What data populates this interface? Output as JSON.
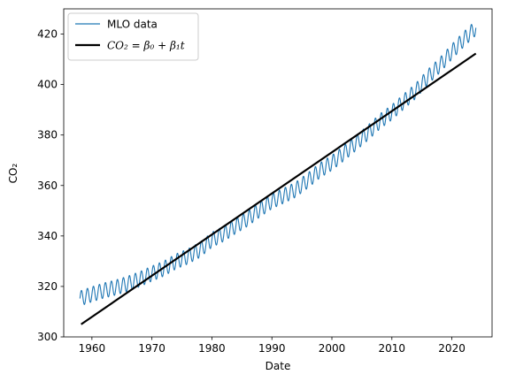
{
  "chart_data": {
    "type": "line",
    "title": "",
    "xlabel": "Date",
    "ylabel": "CO₂",
    "xlim": [
      1955.3,
      2026.7
    ],
    "ylim": [
      300,
      430
    ],
    "xticks": [
      1960,
      1970,
      1980,
      1990,
      2000,
      2010,
      2020
    ],
    "yticks": [
      300,
      320,
      340,
      360,
      380,
      400,
      420
    ],
    "xtick_labels": [
      "1960",
      "1970",
      "1980",
      "1990",
      "2000",
      "2010",
      "2020"
    ],
    "ytick_labels": [
      "300",
      "320",
      "340",
      "360",
      "380",
      "400",
      "420"
    ],
    "legend_position": "upper-left",
    "series": [
      {
        "name": "MLO data",
        "kind": "line",
        "color": "#1f77b4",
        "x": [
          1958,
          1960,
          1962,
          1964,
          1966,
          1968,
          1970,
          1972,
          1974,
          1976,
          1978,
          1980,
          1982,
          1984,
          1986,
          1988,
          1990,
          1992,
          1994,
          1996,
          1998,
          2000,
          2002,
          2004,
          2006,
          2008,
          2010,
          2012,
          2014,
          2016,
          2018,
          2020,
          2022,
          2024
        ],
        "y": [
          315.2,
          316.9,
          318.4,
          319.6,
          321.1,
          322.9,
          325.1,
          327.1,
          329.9,
          331.9,
          334.5,
          338.5,
          340.9,
          344.0,
          346.9,
          350.5,
          353.8,
          356.0,
          358.4,
          362.0,
          366.0,
          369.0,
          372.8,
          376.8,
          380.9,
          385.4,
          389.0,
          393.3,
          397.5,
          403.0,
          407.7,
          413.0,
          418.0,
          422.5
        ],
        "seasonal_amplitude": 3.0,
        "cycles_per_year": 1
      },
      {
        "name": "CO₂ = β₀ + β₁t",
        "kind": "line",
        "color": "#000000",
        "x": [
          1958.2,
          2024.0
        ],
        "y": [
          305.0,
          412.3
        ]
      }
    ]
  }
}
